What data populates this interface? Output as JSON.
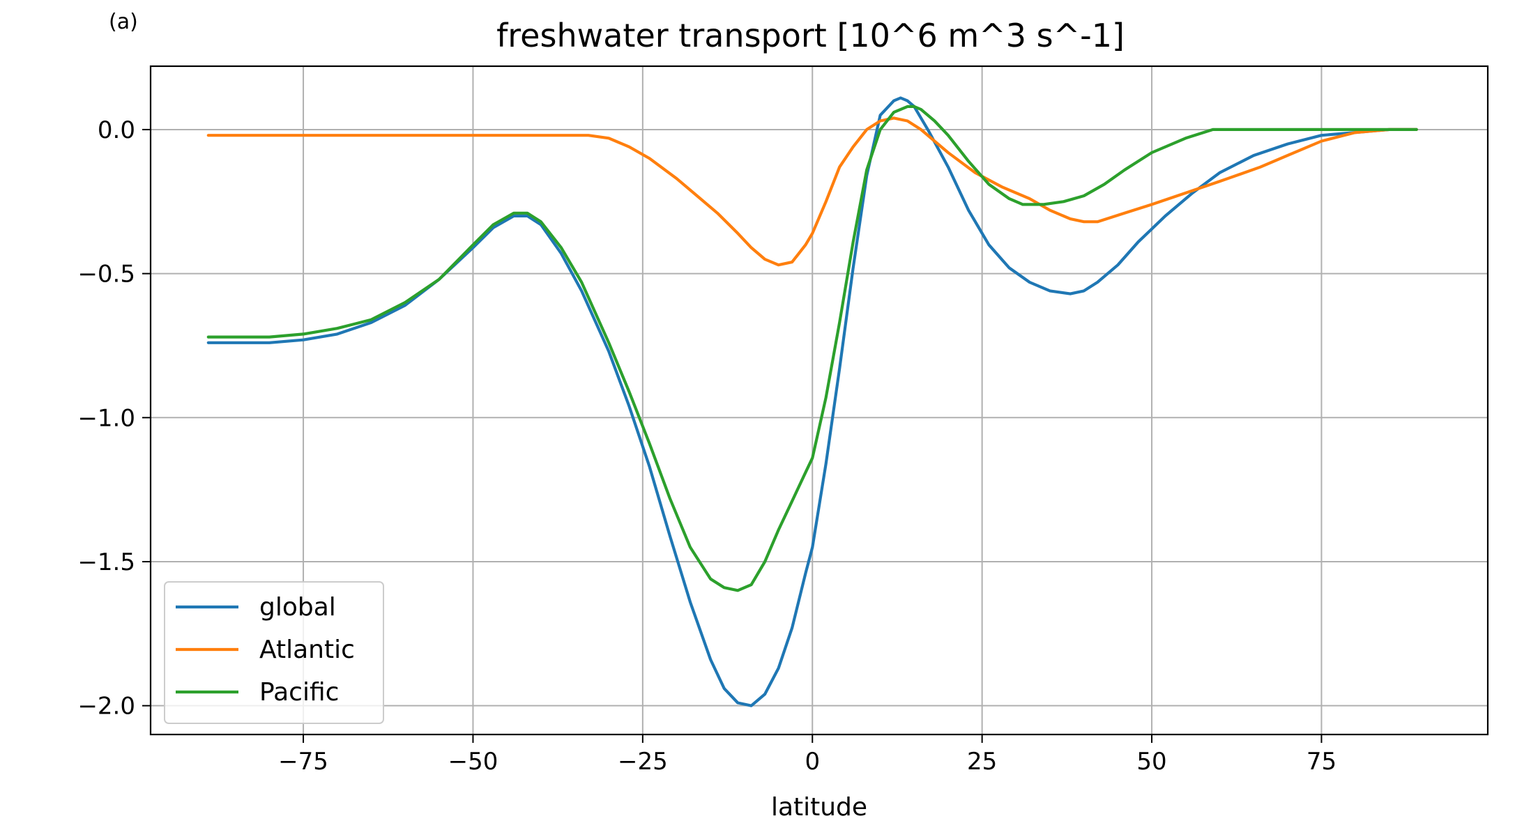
{
  "chart_data": {
    "type": "line",
    "panel_label": "(a)",
    "title": "freshwater transport [10^6 m^3 s^-1]",
    "xlabel": "latitude",
    "ylabel": "",
    "xlim": [
      -97.5,
      99.5
    ],
    "ylim": [
      -2.1,
      0.22
    ],
    "xticks": [
      -75,
      -50,
      -25,
      0,
      25,
      50,
      75
    ],
    "yticks": [
      0.0,
      -0.5,
      -1.0,
      -1.5,
      -2.0
    ],
    "xtick_labels": [
      "−75",
      "−50",
      "−25",
      "0",
      "25",
      "50",
      "75"
    ],
    "ytick_labels": [
      "0.0",
      "−0.5",
      "−1.0",
      "−1.5",
      "−2.0"
    ],
    "grid": true,
    "legend_position": "lower-left",
    "series": [
      {
        "name": "global",
        "color": "#1f77b4",
        "x": [
          -89,
          -80,
          -75,
          -70,
          -65,
          -60,
          -55,
          -50,
          -47,
          -44,
          -42,
          -40,
          -37,
          -34,
          -30,
          -27,
          -24,
          -21,
          -18,
          -15,
          -13,
          -11,
          -9,
          -7,
          -5,
          -3,
          -1,
          0,
          2,
          4,
          6,
          8,
          10,
          12,
          13,
          14,
          15,
          17,
          20,
          23,
          26,
          29,
          32,
          35,
          38,
          40,
          42,
          45,
          48,
          52,
          56,
          60,
          65,
          70,
          75,
          80,
          85,
          89
        ],
        "y": [
          -0.74,
          -0.74,
          -0.73,
          -0.71,
          -0.67,
          -0.61,
          -0.52,
          -0.41,
          -0.34,
          -0.3,
          -0.3,
          -0.33,
          -0.43,
          -0.56,
          -0.77,
          -0.96,
          -1.17,
          -1.41,
          -1.64,
          -1.84,
          -1.94,
          -1.99,
          -2.0,
          -1.96,
          -1.87,
          -1.73,
          -1.54,
          -1.45,
          -1.16,
          -0.83,
          -0.48,
          -0.16,
          0.05,
          0.1,
          0.11,
          0.1,
          0.08,
          0.0,
          -0.13,
          -0.28,
          -0.4,
          -0.48,
          -0.53,
          -0.56,
          -0.57,
          -0.56,
          -0.53,
          -0.47,
          -0.39,
          -0.3,
          -0.22,
          -0.15,
          -0.09,
          -0.05,
          -0.02,
          -0.01,
          0.0,
          0.0
        ]
      },
      {
        "name": "Atlantic",
        "color": "#ff7f0e",
        "x": [
          -89,
          -80,
          -60,
          -40,
          -33,
          -30,
          -27,
          -24,
          -20,
          -17,
          -14,
          -11,
          -9,
          -7,
          -5,
          -3,
          -1,
          0,
          2,
          4,
          6,
          8,
          10,
          12,
          14,
          16,
          18,
          20,
          24,
          28,
          32,
          35,
          38,
          40,
          42,
          46,
          50,
          55,
          60,
          66,
          70,
          75,
          80,
          85,
          89
        ],
        "y": [
          -0.02,
          -0.02,
          -0.02,
          -0.02,
          -0.02,
          -0.03,
          -0.06,
          -0.1,
          -0.17,
          -0.23,
          -0.29,
          -0.36,
          -0.41,
          -0.45,
          -0.47,
          -0.46,
          -0.4,
          -0.36,
          -0.25,
          -0.13,
          -0.06,
          0.0,
          0.03,
          0.04,
          0.03,
          0.0,
          -0.04,
          -0.08,
          -0.15,
          -0.2,
          -0.24,
          -0.28,
          -0.31,
          -0.32,
          -0.32,
          -0.29,
          -0.26,
          -0.22,
          -0.18,
          -0.13,
          -0.09,
          -0.04,
          -0.01,
          0.0,
          0.0
        ]
      },
      {
        "name": "Pacific",
        "color": "#2ca02c",
        "x": [
          -89,
          -80,
          -75,
          -70,
          -65,
          -60,
          -55,
          -50,
          -47,
          -44,
          -42,
          -40,
          -37,
          -34,
          -30,
          -27,
          -24,
          -21,
          -18,
          -15,
          -13,
          -11,
          -9,
          -7,
          -5,
          -3,
          -1,
          0,
          2,
          4,
          6,
          8,
          10,
          12,
          14,
          15,
          16,
          18,
          20,
          23,
          26,
          29,
          31,
          34,
          37,
          40,
          43,
          46,
          50,
          55,
          59,
          63,
          70,
          80,
          89
        ],
        "y": [
          -0.72,
          -0.72,
          -0.71,
          -0.69,
          -0.66,
          -0.6,
          -0.52,
          -0.4,
          -0.33,
          -0.29,
          -0.29,
          -0.32,
          -0.41,
          -0.53,
          -0.74,
          -0.91,
          -1.09,
          -1.28,
          -1.45,
          -1.56,
          -1.59,
          -1.6,
          -1.58,
          -1.5,
          -1.39,
          -1.29,
          -1.19,
          -1.14,
          -0.93,
          -0.67,
          -0.39,
          -0.14,
          0.0,
          0.06,
          0.08,
          0.08,
          0.07,
          0.03,
          -0.02,
          -0.11,
          -0.19,
          -0.24,
          -0.26,
          -0.26,
          -0.25,
          -0.23,
          -0.19,
          -0.14,
          -0.08,
          -0.03,
          0.0,
          0.0,
          0.0,
          0.0,
          0.0
        ]
      }
    ]
  }
}
